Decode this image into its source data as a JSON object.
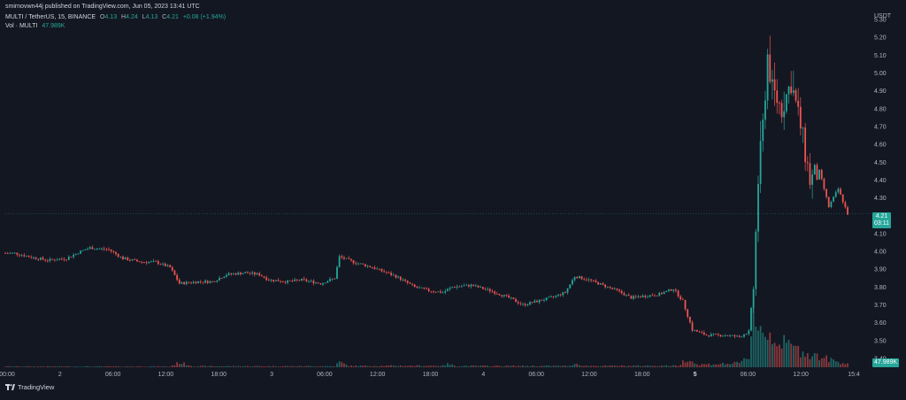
{
  "publisher": "smirnovwn44j published on TradingView.com, Jun 05, 2023 13:41 UTC",
  "symbol_line": "MULTI / TetherUS, 15, BINANCE",
  "ohlc": {
    "o_label": "O",
    "o": "4.13",
    "h_label": "H",
    "h": "4.24",
    "l_label": "L",
    "l": "4.13",
    "c_label": "C",
    "c": "4.21",
    "change": "+0.08 (+1.94%)"
  },
  "volume_line": {
    "label": "Vol · MULTI",
    "value": "47.989K"
  },
  "footer": {
    "brand": "TradingView"
  },
  "price_badge": {
    "price": "4.21",
    "countdown": "03:11"
  },
  "volume_badge": "47.989K",
  "colors": {
    "background": "#131722",
    "up": "#26a69a",
    "down": "#ef5350",
    "text": "#b2b5be"
  },
  "chart_data": {
    "type": "candlestick",
    "y_axis_unit": "USDT",
    "ylim": [
      3.35,
      5.35
    ],
    "y_ticks": [
      "5.30",
      "5.20",
      "5.10",
      "5.00",
      "4.90",
      "4.80",
      "4.70",
      "4.60",
      "4.50",
      "4.40",
      "4.30",
      "4.20",
      "4.10",
      "4.00",
      "3.90",
      "3.80",
      "3.70",
      "3.60",
      "3.50",
      "3.40"
    ],
    "x_ticks": [
      "00:00",
      "2",
      "06:00",
      "12:00",
      "18:00",
      "3",
      "06:00",
      "12:00",
      "18:00",
      "4",
      "06:00",
      "12:00",
      "18:00",
      "5",
      "06:00",
      "12:00",
      "15:4"
    ],
    "last_price": 4.21,
    "price_keypoints": [
      [
        0,
        3.99
      ],
      [
        4,
        3.99
      ],
      [
        10,
        3.97
      ],
      [
        18,
        3.95
      ],
      [
        26,
        3.96
      ],
      [
        32,
        4.0
      ],
      [
        36,
        4.02
      ],
      [
        44,
        4.01
      ],
      [
        50,
        3.96
      ],
      [
        58,
        3.94
      ],
      [
        64,
        3.94
      ],
      [
        70,
        3.91
      ],
      [
        74,
        3.82
      ],
      [
        82,
        3.83
      ],
      [
        88,
        3.83
      ],
      [
        94,
        3.87
      ],
      [
        102,
        3.88
      ],
      [
        108,
        3.87
      ],
      [
        112,
        3.84
      ],
      [
        120,
        3.83
      ],
      [
        126,
        3.84
      ],
      [
        134,
        3.82
      ],
      [
        140,
        3.85
      ],
      [
        142,
        3.97
      ],
      [
        148,
        3.94
      ],
      [
        156,
        3.91
      ],
      [
        166,
        3.86
      ],
      [
        174,
        3.8
      ],
      [
        180,
        3.78
      ],
      [
        186,
        3.77
      ],
      [
        190,
        3.8
      ],
      [
        198,
        3.81
      ],
      [
        206,
        3.78
      ],
      [
        214,
        3.74
      ],
      [
        220,
        3.7
      ],
      [
        226,
        3.72
      ],
      [
        232,
        3.74
      ],
      [
        238,
        3.77
      ],
      [
        242,
        3.86
      ],
      [
        248,
        3.84
      ],
      [
        254,
        3.81
      ],
      [
        260,
        3.78
      ],
      [
        266,
        3.74
      ],
      [
        272,
        3.75
      ],
      [
        278,
        3.76
      ],
      [
        284,
        3.79
      ],
      [
        288,
        3.72
      ],
      [
        292,
        3.56
      ],
      [
        298,
        3.53
      ],
      [
        306,
        3.53
      ],
      [
        312,
        3.52
      ],
      [
        316,
        3.55
      ],
      [
        318,
        3.8
      ],
      [
        320,
        4.4
      ],
      [
        322,
        4.7
      ],
      [
        324,
        5.1
      ],
      [
        326,
        4.9
      ],
      [
        330,
        4.8
      ],
      [
        334,
        4.95
      ],
      [
        338,
        4.7
      ],
      [
        342,
        4.4
      ],
      [
        346,
        4.45
      ],
      [
        350,
        4.25
      ],
      [
        354,
        4.35
      ],
      [
        358,
        4.21
      ]
    ],
    "volume_keypoints": [
      [
        0,
        0.3
      ],
      [
        70,
        0.3
      ],
      [
        74,
        1.8
      ],
      [
        80,
        0.4
      ],
      [
        140,
        0.4
      ],
      [
        142,
        2.0
      ],
      [
        146,
        0.5
      ],
      [
        186,
        0.6
      ],
      [
        188,
        1.2
      ],
      [
        192,
        0.5
      ],
      [
        240,
        0.5
      ],
      [
        242,
        1.5
      ],
      [
        246,
        0.5
      ],
      [
        286,
        0.6
      ],
      [
        290,
        3.5
      ],
      [
        294,
        1.0
      ],
      [
        312,
        1.5
      ],
      [
        316,
        4.0
      ],
      [
        318,
        22.0
      ],
      [
        320,
        16.0
      ],
      [
        322,
        13.0
      ],
      [
        326,
        12.0
      ],
      [
        330,
        9.0
      ],
      [
        334,
        8.0
      ],
      [
        338,
        6.0
      ],
      [
        342,
        5.0
      ],
      [
        346,
        4.0
      ],
      [
        350,
        3.0
      ],
      [
        354,
        2.0
      ],
      [
        358,
        1.5
      ]
    ]
  }
}
